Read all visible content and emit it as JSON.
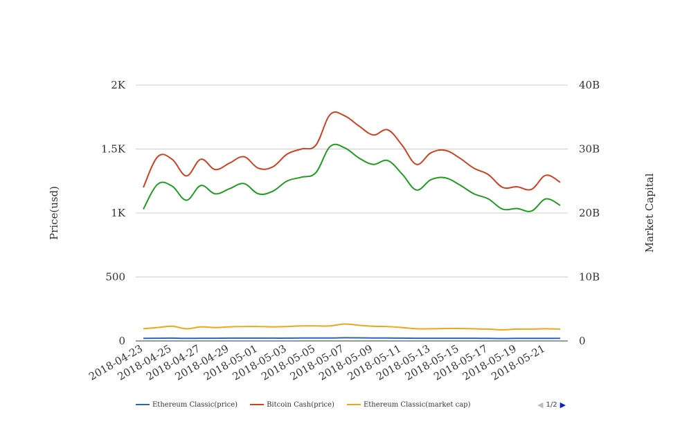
{
  "chart_data": {
    "type": "line",
    "x": [
      "2018-04-23",
      "2018-04-24",
      "2018-04-25",
      "2018-04-26",
      "2018-04-27",
      "2018-04-28",
      "2018-04-29",
      "2018-04-30",
      "2018-05-01",
      "2018-05-02",
      "2018-05-03",
      "2018-05-04",
      "2018-05-05",
      "2018-05-06",
      "2018-05-07",
      "2018-05-08",
      "2018-05-09",
      "2018-05-10",
      "2018-05-11",
      "2018-05-12",
      "2018-05-13",
      "2018-05-14",
      "2018-05-15",
      "2018-05-16",
      "2018-05-17",
      "2018-05-18",
      "2018-05-19",
      "2018-05-20",
      "2018-05-21",
      "2018-05-22"
    ],
    "x_tick_labels": [
      "2018-04-23",
      "2018-04-25",
      "2018-04-27",
      "2018-04-29",
      "2018-05-01",
      "2018-05-03",
      "2018-05-05",
      "2018-05-07",
      "2018-05-09",
      "2018-05-11",
      "2018-05-13",
      "2018-05-15",
      "2018-05-17",
      "2018-05-19",
      "2018-05-21"
    ],
    "y_left": {
      "label": "Price(usd)",
      "ticks": [
        "0",
        "500",
        "1K",
        "1.5K",
        "2K"
      ],
      "tick_values": [
        0,
        500,
        1000,
        1500,
        2000
      ],
      "range": [
        0,
        2000
      ]
    },
    "y_right": {
      "label": "Market Capital",
      "ticks": [
        "0",
        "10B",
        "20B",
        "30B",
        "40B"
      ],
      "tick_values": [
        0,
        10000000000,
        20000000000,
        30000000000,
        40000000000
      ],
      "range": [
        0,
        40000000000
      ]
    },
    "grid": true,
    "legend_position": "bottom",
    "series": [
      {
        "name": "Ethereum Classic(price)",
        "axis": "left",
        "color": "#2f64b5",
        "values": [
          20,
          21,
          22,
          20,
          21,
          21,
          22,
          22,
          22,
          22,
          22,
          23,
          23,
          23,
          25,
          24,
          23,
          23,
          22,
          21,
          21,
          21,
          21,
          21,
          20,
          19,
          20,
          20,
          20,
          20
        ]
      },
      {
        "name": "Bitcoin Cash(price)",
        "axis": "left",
        "color": "#cc4121",
        "values": [
          1200,
          1440,
          1420,
          1290,
          1420,
          1340,
          1390,
          1440,
          1350,
          1360,
          1460,
          1500,
          1530,
          1770,
          1760,
          1680,
          1610,
          1650,
          1530,
          1380,
          1470,
          1490,
          1430,
          1350,
          1300,
          1200,
          1205,
          1185,
          1295,
          1240
        ]
      },
      {
        "name": "Ethereum Classic(market cap)",
        "axis": "right",
        "color": "#eea51d",
        "values": [
          1900000000,
          2100000000,
          2300000000,
          1900000000,
          2200000000,
          2100000000,
          2200000000,
          2250000000,
          2250000000,
          2200000000,
          2250000000,
          2350000000,
          2350000000,
          2350000000,
          2650000000,
          2450000000,
          2300000000,
          2250000000,
          2100000000,
          1900000000,
          1900000000,
          1950000000,
          1950000000,
          1900000000,
          1850000000,
          1750000000,
          1850000000,
          1850000000,
          1900000000,
          1850000000
        ]
      },
      {
        "name": "",
        "axis": "right",
        "color": "#1f9b1f",
        "values": [
          20600000000,
          24500000000,
          24200000000,
          22000000000,
          24300000000,
          23000000000,
          23800000000,
          24600000000,
          23000000000,
          23400000000,
          25000000000,
          25600000000,
          26300000000,
          30400000000,
          30200000000,
          28600000000,
          27600000000,
          28200000000,
          26100000000,
          23600000000,
          25200000000,
          25500000000,
          24400000000,
          23000000000,
          22200000000,
          20600000000,
          20700000000,
          20300000000,
          22200000000,
          21200000000
        ]
      }
    ]
  },
  "legend": {
    "items": [
      "Ethereum Classic(price)",
      "Bitcoin Cash(price)",
      "Ethereum Classic(market cap)"
    ]
  },
  "pager": {
    "text": "1/2"
  }
}
